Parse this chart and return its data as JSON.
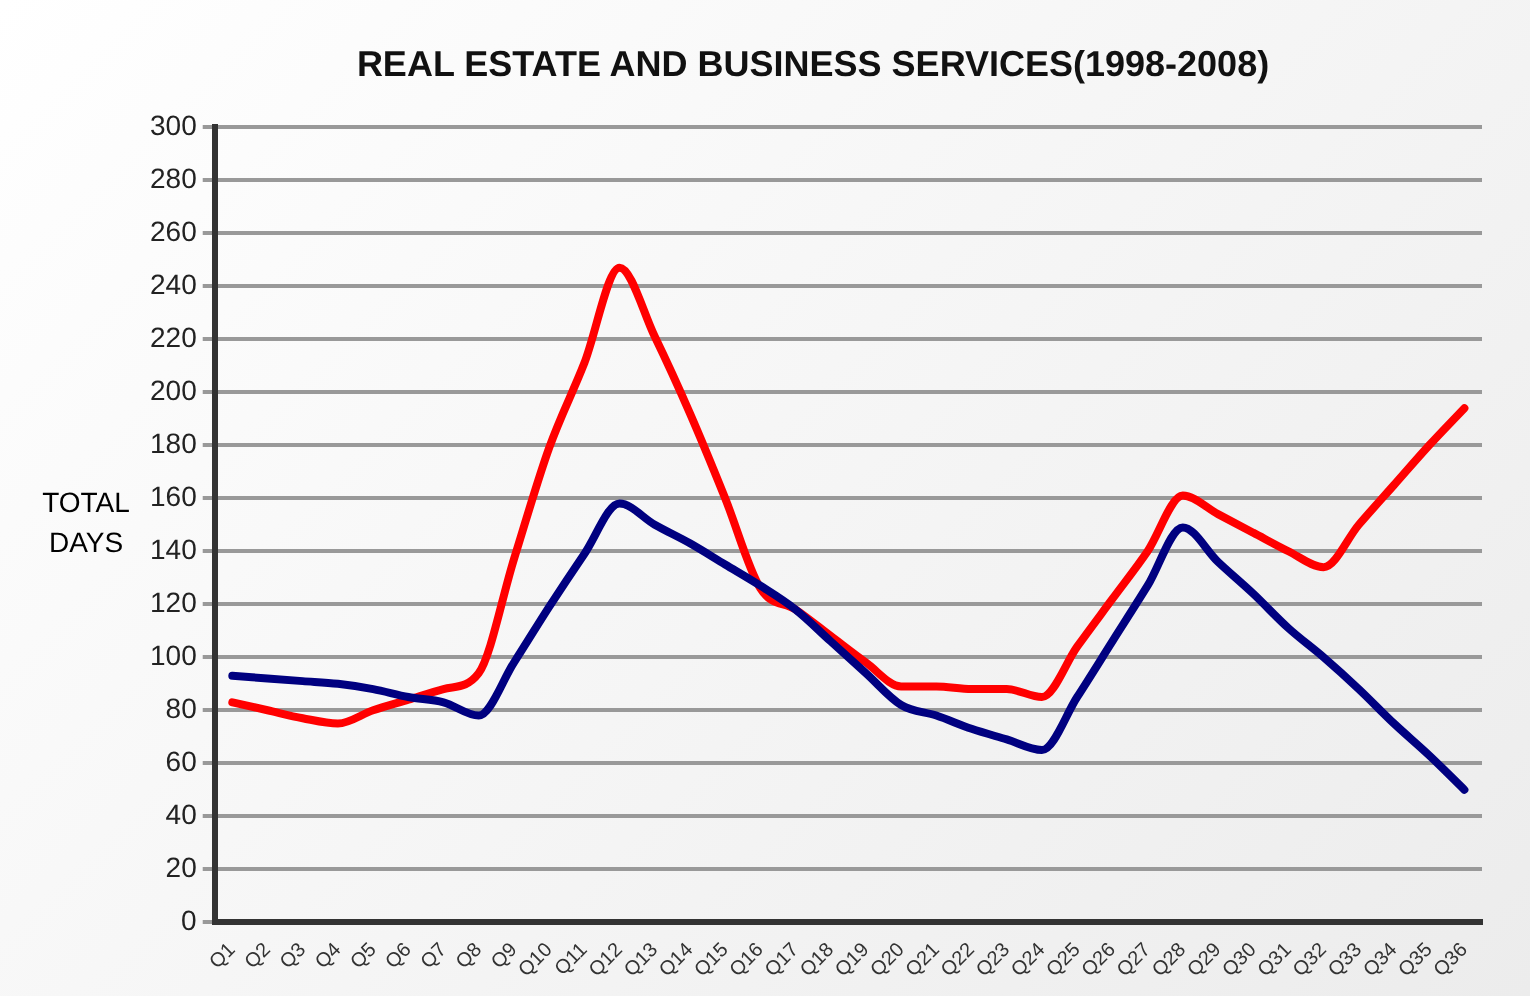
{
  "chart_data": {
    "type": "line",
    "title": "REAL ESTATE AND BUSINESS SERVICES(1998-2008)",
    "ylabel": "TOTAL DAYS",
    "categories": [
      "Q1",
      "Q2",
      "Q3",
      "Q4",
      "Q5",
      "Q6",
      "Q7",
      "Q8",
      "Q9",
      "Q10",
      "Q11",
      "Q12",
      "Q13",
      "Q14",
      "Q15",
      "Q16",
      "Q17",
      "Q18",
      "Q19",
      "Q20",
      "Q21",
      "Q22",
      "Q23",
      "Q24",
      "Q25",
      "Q26",
      "Q27",
      "Q28",
      "Q29",
      "Q30",
      "Q31",
      "Q32",
      "Q33",
      "Q34",
      "Q35",
      "Q36"
    ],
    "series": [
      {
        "color": "#000080",
        "values": [
          93,
          92,
          91,
          90,
          88,
          85,
          83,
          78,
          98,
          119,
          139,
          158,
          150,
          143,
          135,
          127,
          118,
          106,
          94,
          82,
          78,
          73,
          69,
          65,
          85,
          106,
          127,
          149,
          136,
          124,
          111,
          100,
          88,
          75,
          63,
          50
        ]
      },
      {
        "color": "#ff0000",
        "values": [
          83,
          80,
          77,
          75,
          80,
          84,
          88,
          94,
          137,
          179,
          211,
          247,
          221,
          192,
          160,
          126,
          118,
          108,
          98,
          89,
          89,
          88,
          88,
          85,
          104,
          122,
          140,
          161,
          154,
          147,
          140,
          134,
          150,
          165,
          180,
          194
        ]
      }
    ],
    "ylim": [
      0,
      300
    ],
    "yticks": [
      0,
      20,
      40,
      60,
      80,
      100,
      120,
      140,
      160,
      180,
      200,
      220,
      240,
      260,
      280,
      300
    ],
    "grid": "y",
    "legend": false,
    "marker": "none",
    "line_style": "solid"
  }
}
